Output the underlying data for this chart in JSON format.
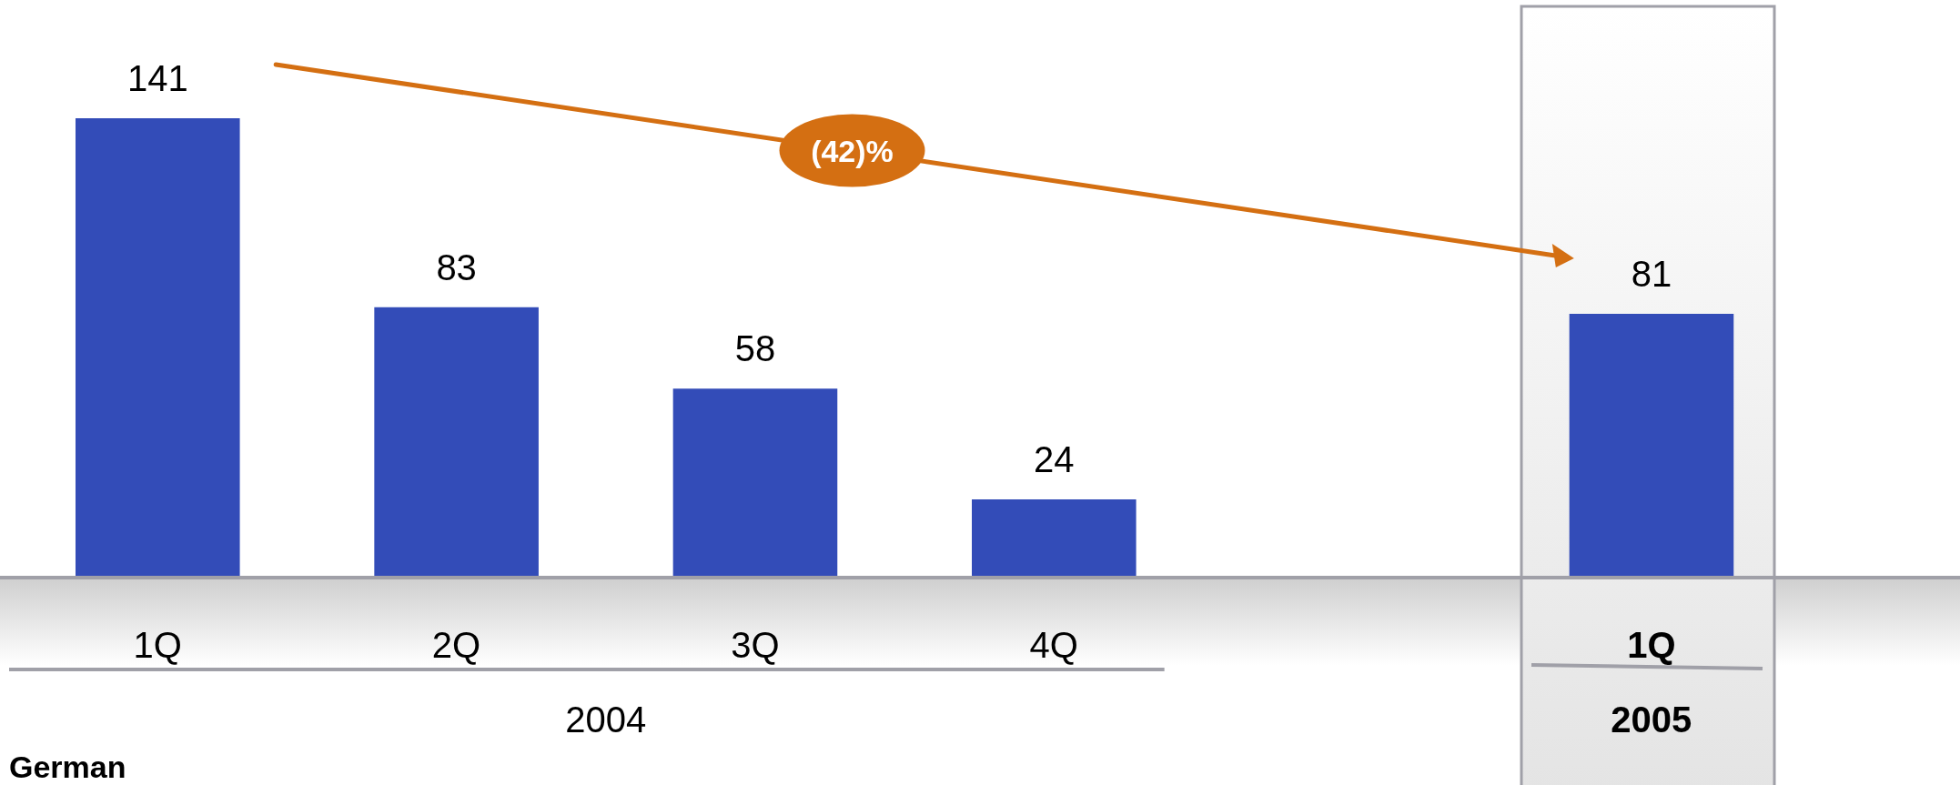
{
  "chart_data": {
    "type": "bar",
    "categories": [
      "1Q",
      "2Q",
      "3Q",
      "4Q",
      null,
      "1Q"
    ],
    "values": [
      141,
      83,
      58,
      24,
      null,
      81
    ],
    "color": "#334cb8",
    "data_labels": true,
    "grid": false,
    "legend": false,
    "annotations": [
      "(42)%",
      "2004",
      "2005",
      "German"
    ]
  }
}
